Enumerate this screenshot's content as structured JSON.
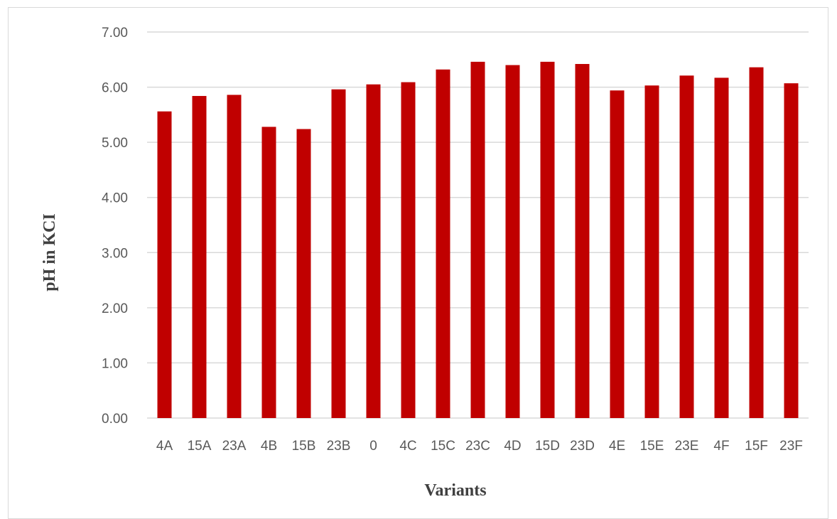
{
  "chart_data": {
    "type": "bar",
    "title": "",
    "xlabel": "Variants",
    "ylabel": "pH in KCI",
    "categories": [
      "4A",
      "15A",
      "23A",
      "4B",
      "15B",
      "23B",
      "0",
      "4C",
      "15C",
      "23C",
      "4D",
      "15D",
      "23D",
      "4E",
      "15E",
      "23E",
      "4F",
      "15F",
      "23F"
    ],
    "values": [
      5.56,
      5.84,
      5.86,
      5.28,
      5.24,
      5.96,
      6.05,
      6.09,
      6.32,
      6.46,
      6.4,
      6.46,
      6.42,
      5.94,
      6.03,
      6.21,
      6.17,
      6.36,
      6.07
    ],
    "ylim": [
      0,
      7
    ],
    "yticks": [
      "0.00",
      "1.00",
      "2.00",
      "3.00",
      "4.00",
      "5.00",
      "6.00",
      "7.00"
    ],
    "grid": true,
    "legend": "none",
    "bar_color": "#c00000",
    "grid_color": "#d9d9d9"
  }
}
